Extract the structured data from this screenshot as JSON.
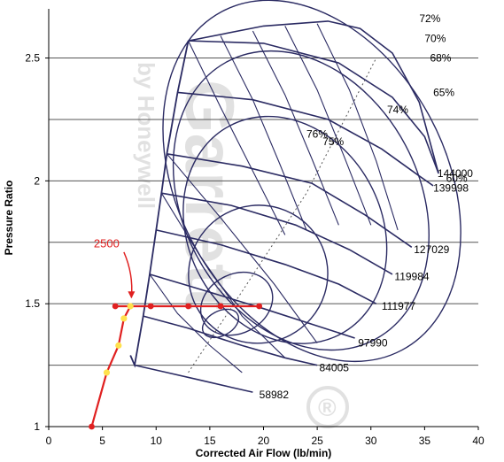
{
  "chart_data": {
    "type": "line",
    "xlabel": "Corrected Air Flow (lb/min)",
    "ylabel": "Pressure Ratio",
    "xlim": [
      0,
      40
    ],
    "ylim": [
      1,
      2.7
    ],
    "x_ticks": [
      0,
      5,
      10,
      15,
      20,
      25,
      30,
      35,
      40
    ],
    "y_ticks": [
      1,
      1.5,
      2,
      2.5
    ],
    "grid": "horizontal",
    "series": [
      {
        "name": "58982",
        "x": [
          8.0,
          11.0,
          14.0,
          17.0,
          19.0
        ],
        "y": [
          1.25,
          1.22,
          1.19,
          1.16,
          1.14
        ]
      },
      {
        "name": "84005",
        "x": [
          8.8,
          13.0,
          18.0,
          22.0,
          25.0
        ],
        "y": [
          1.45,
          1.4,
          1.33,
          1.28,
          1.25
        ]
      },
      {
        "name": "97990",
        "x": [
          9.4,
          14.0,
          20.0,
          25.0,
          28.5
        ],
        "y": [
          1.62,
          1.56,
          1.48,
          1.41,
          1.36
        ]
      },
      {
        "name": "111977",
        "x": [
          10.0,
          16.0,
          22.0,
          27.0,
          30.5
        ],
        "y": [
          1.8,
          1.74,
          1.66,
          1.58,
          1.5
        ]
      },
      {
        "name": "119984",
        "x": [
          10.5,
          17.0,
          23.0,
          28.0,
          32.0
        ],
        "y": [
          1.95,
          1.9,
          1.82,
          1.72,
          1.62
        ]
      },
      {
        "name": "127029",
        "x": [
          11.0,
          18.0,
          24.5,
          29.5,
          33.8
        ],
        "y": [
          2.11,
          2.06,
          1.99,
          1.86,
          1.73
        ]
      },
      {
        "name": "139998",
        "x": [
          12.0,
          19.0,
          26.0,
          31.0,
          34.5,
          35.8
        ],
        "y": [
          2.36,
          2.33,
          2.25,
          2.13,
          2.02,
          1.98
        ]
      },
      {
        "name": "144000",
        "x": [
          13.0,
          20.0,
          27.0,
          32.0,
          35.0,
          36.3
        ],
        "y": [
          2.57,
          2.56,
          2.48,
          2.34,
          2.18,
          2.03
        ]
      }
    ],
    "surge_line": {
      "x": [
        7.6,
        8.0,
        8.8,
        9.4,
        10.0,
        10.5,
        11.0,
        12.0,
        13.0
      ],
      "y": [
        1.29,
        1.25,
        1.45,
        1.62,
        1.8,
        1.95,
        2.11,
        2.36,
        2.57
      ]
    },
    "efficiency_islands": [
      {
        "label": "76%",
        "x": 24.0,
        "y": 2.19
      },
      {
        "label": "75%",
        "x": 25.5,
        "y": 2.16
      },
      {
        "label": "74%",
        "x": 31.5,
        "y": 2.29
      },
      {
        "label": "72%",
        "x": 34.5,
        "y": 2.66
      },
      {
        "label": "70%",
        "x": 35.0,
        "y": 2.58
      },
      {
        "label": "68%",
        "x": 35.5,
        "y": 2.5
      },
      {
        "label": "65%",
        "x": 35.8,
        "y": 2.36
      },
      {
        "label": "60%",
        "x": 37.0,
        "y": 2.01
      }
    ],
    "operating_points": {
      "path_x": [
        4.0,
        5.4,
        6.5,
        7.0,
        7.6,
        9.5,
        13.0,
        16.0,
        19.6
      ],
      "path_y": [
        1.0,
        1.22,
        1.33,
        1.44,
        1.49,
        1.49,
        1.49,
        1.49,
        1.49
      ],
      "yellow_x": [
        5.4,
        6.5,
        7.0,
        7.6
      ],
      "yellow_y": [
        1.22,
        1.33,
        1.44,
        1.49
      ],
      "red_x": [
        4.0,
        6.2,
        9.5,
        13.0,
        16.0,
        19.6
      ],
      "red_y": [
        1.0,
        1.49,
        1.49,
        1.49,
        1.49,
        1.49
      ],
      "label": "2500"
    },
    "watermark": {
      "brand": "Garrett",
      "sub": "by Honeywell",
      "mark": "®"
    },
    "colors": {
      "curves": "#2b2b63",
      "operating": "#e02020",
      "yellow": "#ffe14d",
      "grid": "#555555"
    }
  }
}
